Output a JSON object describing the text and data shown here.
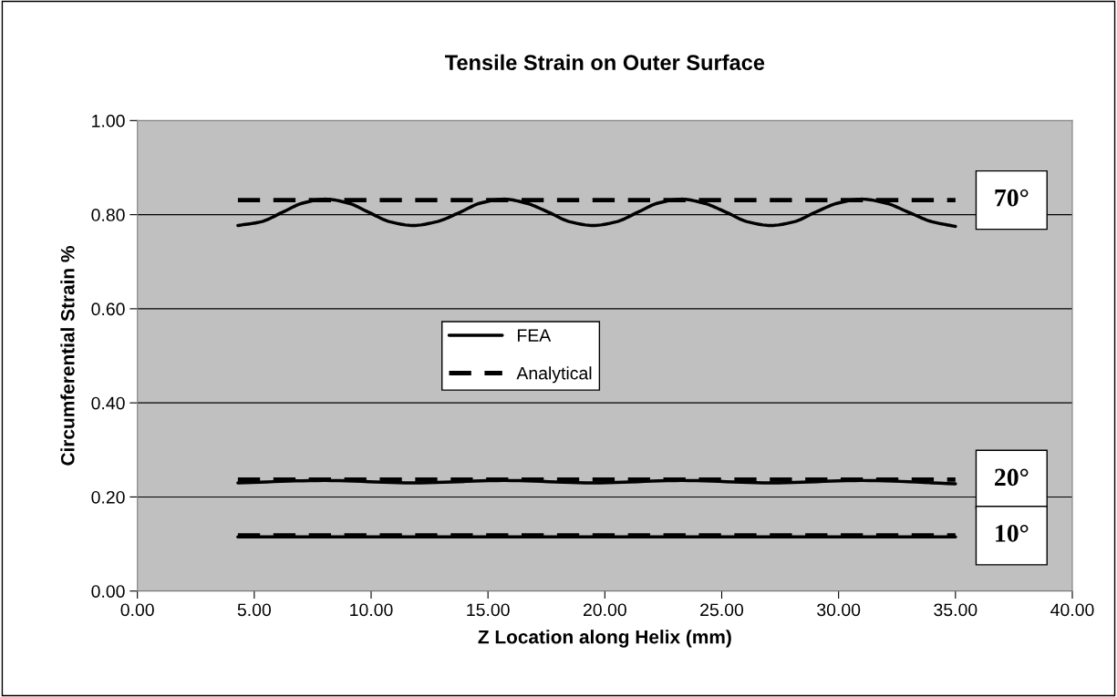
{
  "chart_data": {
    "type": "line",
    "title": "Tensile Strain on Outer Surface",
    "xlabel": "Z Location along Helix (mm)",
    "ylabel": "Circumferential Strain %",
    "xlim": [
      0,
      40
    ],
    "xticks": [
      {
        "value": 0,
        "label": "0.00"
      },
      {
        "value": 5,
        "label": "5.00"
      },
      {
        "value": 10,
        "label": "10.00"
      },
      {
        "value": 15,
        "label": "15.00"
      },
      {
        "value": 20,
        "label": "20.00"
      },
      {
        "value": 25,
        "label": "25.00"
      },
      {
        "value": 30,
        "label": "30.00"
      },
      {
        "value": 35,
        "label": "35.00"
      },
      {
        "value": 40,
        "label": "40.00"
      }
    ],
    "ylim": [
      0,
      1
    ],
    "yticks": [
      {
        "value": 0,
        "label": "0.00"
      },
      {
        "value": 0.2,
        "label": "0.20"
      },
      {
        "value": 0.4,
        "label": "0.40"
      },
      {
        "value": 0.6,
        "label": "0.60"
      },
      {
        "value": 0.8,
        "label": "0.80"
      },
      {
        "value": 1,
        "label": "1.00"
      }
    ],
    "grid": "y",
    "legend": "center",
    "marker": "none",
    "series": [
      {
        "name": "FEA",
        "color": "#000000",
        "line_style": "solid",
        "x": [
          4.3,
          5.3,
          6.2,
          7.1,
          8.05,
          9.0,
          9.9,
          10.8,
          11.8,
          12.8,
          13.8,
          14.7,
          15.7,
          16.6,
          17.6,
          18.5,
          19.5,
          20.5,
          21.4,
          22.3,
          23.3,
          24.2,
          25.2,
          26.1,
          27.1,
          28.1,
          29.0,
          30.0,
          31.0,
          32.0,
          33.0,
          34.0,
          35.0
        ],
        "values": [
          0.777,
          0.785,
          0.805,
          0.825,
          0.833,
          0.825,
          0.805,
          0.785,
          0.777,
          0.785,
          0.805,
          0.825,
          0.833,
          0.825,
          0.805,
          0.785,
          0.777,
          0.785,
          0.805,
          0.825,
          0.833,
          0.825,
          0.805,
          0.785,
          0.777,
          0.785,
          0.805,
          0.825,
          0.833,
          0.825,
          0.805,
          0.785,
          0.775
        ]
      },
      {
        "name": "Analytical",
        "color": "#000000",
        "line_style": "dashed",
        "x": [
          4.3,
          35.0
        ],
        "values": [
          0.831,
          0.831
        ]
      },
      {
        "color": "#000000",
        "line_style": "solid",
        "x": [
          4.3,
          8.0,
          11.8,
          15.7,
          19.5,
          23.3,
          27.1,
          31.0,
          35.0
        ],
        "values": [
          0.23,
          0.235,
          0.23,
          0.235,
          0.23,
          0.235,
          0.23,
          0.235,
          0.228
        ]
      },
      {
        "color": "#000000",
        "line_style": "dashed",
        "x": [
          4.3,
          35.0
        ],
        "values": [
          0.237,
          0.237
        ]
      },
      {
        "color": "#000000",
        "line_style": "solid",
        "x": [
          4.3,
          35.0
        ],
        "values": [
          0.115,
          0.115
        ]
      },
      {
        "color": "#000000",
        "line_style": "dashed",
        "x": [
          4.3,
          35.0
        ],
        "values": [
          0.118,
          0.118
        ]
      }
    ],
    "annotations": [
      "70°",
      "20°",
      "10°"
    ]
  }
}
